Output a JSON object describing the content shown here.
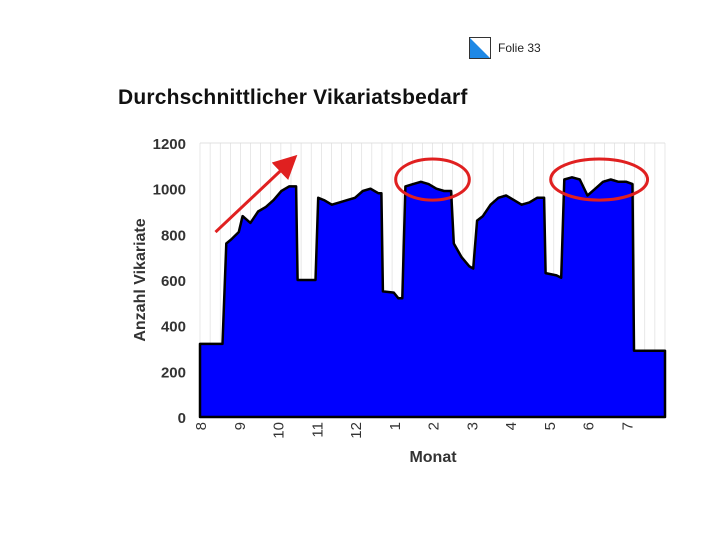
{
  "slide": {
    "label": "Folie 33"
  },
  "colors": {
    "fill": "#0000ff",
    "outline": "#000000",
    "annotation": "#e02020",
    "grid": "#d8d8d8"
  },
  "chart_data": {
    "type": "area",
    "title": "Durchschnittlicher Vikariatsbedarf",
    "xlabel": "Monat",
    "ylabel": "Anzahl Vikariate",
    "ylim": [
      0,
      1200
    ],
    "yticks": [
      0,
      200,
      400,
      600,
      800,
      1000,
      1200
    ],
    "categories": [
      "8",
      "9",
      "10",
      "11",
      "12",
      "1",
      "2",
      "3",
      "4",
      "5",
      "6",
      "7"
    ],
    "series": [
      {
        "name": "Vikariate",
        "values": [
          [
            0.0,
            320
          ],
          [
            0.58,
            320
          ],
          [
            0.68,
            760
          ],
          [
            0.82,
            780
          ],
          [
            1.0,
            810
          ],
          [
            1.1,
            880
          ],
          [
            1.3,
            850
          ],
          [
            1.5,
            900
          ],
          [
            1.7,
            920
          ],
          [
            1.9,
            950
          ],
          [
            2.1,
            990
          ],
          [
            2.3,
            1010
          ],
          [
            2.48,
            1010
          ],
          [
            2.52,
            600
          ],
          [
            2.98,
            600
          ],
          [
            3.05,
            960
          ],
          [
            3.2,
            950
          ],
          [
            3.4,
            930
          ],
          [
            3.6,
            940
          ],
          [
            3.8,
            950
          ],
          [
            4.0,
            960
          ],
          [
            4.2,
            990
          ],
          [
            4.4,
            1000
          ],
          [
            4.6,
            980
          ],
          [
            4.68,
            980
          ],
          [
            4.72,
            550
          ],
          [
            5.0,
            545
          ],
          [
            5.12,
            520
          ],
          [
            5.22,
            520
          ],
          [
            5.3,
            1010
          ],
          [
            5.5,
            1020
          ],
          [
            5.7,
            1030
          ],
          [
            5.9,
            1020
          ],
          [
            6.1,
            1000
          ],
          [
            6.3,
            990
          ],
          [
            6.48,
            990
          ],
          [
            6.55,
            760
          ],
          [
            6.75,
            700
          ],
          [
            6.95,
            660
          ],
          [
            7.05,
            650
          ],
          [
            7.15,
            860
          ],
          [
            7.3,
            880
          ],
          [
            7.5,
            930
          ],
          [
            7.7,
            960
          ],
          [
            7.9,
            970
          ],
          [
            8.1,
            950
          ],
          [
            8.3,
            930
          ],
          [
            8.5,
            940
          ],
          [
            8.7,
            960
          ],
          [
            8.88,
            960
          ],
          [
            8.92,
            630
          ],
          [
            9.2,
            620
          ],
          [
            9.32,
            610
          ],
          [
            9.4,
            1040
          ],
          [
            9.6,
            1050
          ],
          [
            9.8,
            1040
          ],
          [
            10.0,
            970
          ],
          [
            10.2,
            1000
          ],
          [
            10.4,
            1030
          ],
          [
            10.6,
            1040
          ],
          [
            10.8,
            1030
          ],
          [
            11.0,
            1030
          ],
          [
            11.16,
            1020
          ],
          [
            11.2,
            290
          ],
          [
            12.0,
            290
          ]
        ]
      }
    ],
    "annotations": [
      {
        "type": "arrow",
        "from": [
          0.4,
          810
        ],
        "to": [
          2.4,
          1130
        ]
      },
      {
        "type": "ellipse",
        "center": [
          6.0,
          1040
        ],
        "radius": [
          0.95,
          90
        ]
      },
      {
        "type": "ellipse",
        "center": [
          10.3,
          1040
        ],
        "radius": [
          1.25,
          90
        ]
      }
    ]
  }
}
